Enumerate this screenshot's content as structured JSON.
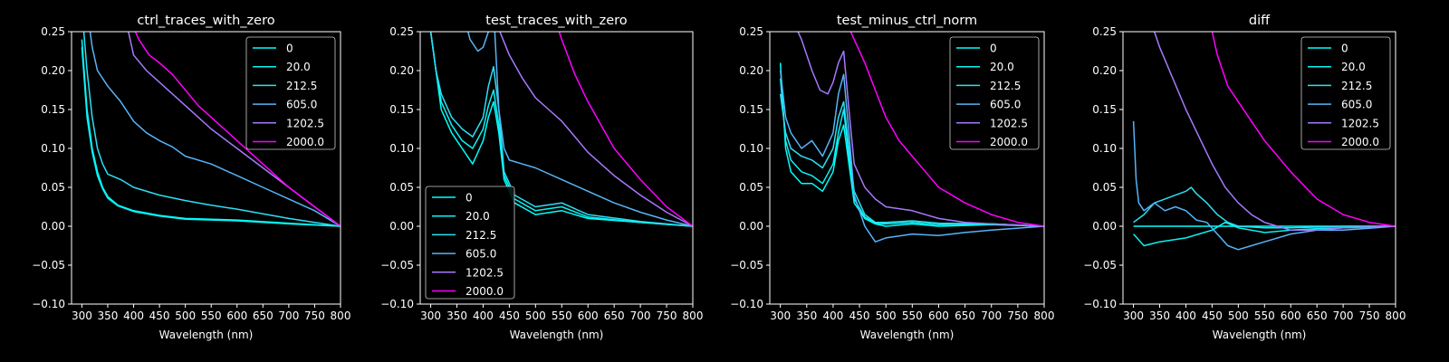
{
  "figure": {
    "background": "#000000",
    "foreground": "#ffffff"
  },
  "colors": {
    "0": "#00ffff",
    "20.0": "#0cf2f3",
    "212.5": "#2be0f5",
    "605.0": "#56b4f9",
    "1202.5": "#a579fd",
    "2000.0": "#ff00ff"
  },
  "chart_data": [
    {
      "type": "line",
      "title": "ctrl_traces_with_zero",
      "xlabel": "Wavelength (nm)",
      "ylabel": "",
      "xlim": [
        280,
        800
      ],
      "ylim": [
        -0.1,
        0.25
      ],
      "xticks": [
        300,
        350,
        400,
        450,
        500,
        550,
        600,
        650,
        700,
        750,
        800
      ],
      "yticks": [
        -0.1,
        -0.05,
        0.0,
        0.05,
        0.1,
        0.15,
        0.2,
        0.25
      ],
      "ytick_labels": [
        "−0.10",
        "−0.05",
        "0.00",
        "0.05",
        "0.10",
        "0.15",
        "0.20",
        "0.25"
      ],
      "grid": false,
      "legend": {
        "position": "upper-right",
        "entries": [
          "0",
          "20.0",
          "212.5",
          "605.0",
          "1202.5",
          "2000.0"
        ]
      },
      "series": [
        {
          "name": "0",
          "x": [
            300,
            310,
            320,
            330,
            340,
            350,
            370,
            400,
            450,
            500,
            600,
            700,
            800
          ],
          "y": [
            0.24,
            0.15,
            0.1,
            0.07,
            0.05,
            0.038,
            0.027,
            0.02,
            0.014,
            0.01,
            0.008,
            0.004,
            0.0
          ]
        },
        {
          "name": "20.0",
          "x": [
            300,
            310,
            320,
            330,
            340,
            350,
            370,
            400,
            450,
            500,
            600,
            700,
            800
          ],
          "y": [
            0.23,
            0.14,
            0.095,
            0.065,
            0.048,
            0.036,
            0.026,
            0.019,
            0.013,
            0.009,
            0.007,
            0.003,
            0.0
          ]
        },
        {
          "name": "212.5",
          "x": [
            300,
            310,
            320,
            330,
            340,
            350,
            375,
            400,
            450,
            500,
            550,
            600,
            650,
            700,
            750,
            800
          ],
          "y": [
            0.28,
            0.2,
            0.14,
            0.1,
            0.08,
            0.067,
            0.06,
            0.05,
            0.04,
            0.033,
            0.027,
            0.022,
            0.016,
            0.01,
            0.005,
            0.0
          ]
        },
        {
          "name": "605.0",
          "x": [
            310,
            320,
            330,
            350,
            375,
            400,
            425,
            450,
            475,
            500,
            550,
            600,
            650,
            700,
            750,
            800
          ],
          "y": [
            0.28,
            0.23,
            0.2,
            0.18,
            0.16,
            0.135,
            0.12,
            0.11,
            0.102,
            0.09,
            0.08,
            0.065,
            0.05,
            0.035,
            0.02,
            0.0
          ]
        },
        {
          "name": "1202.5",
          "x": [
            380,
            400,
            425,
            450,
            475,
            500,
            550,
            600,
            650,
            700,
            750,
            800
          ],
          "y": [
            0.28,
            0.22,
            0.2,
            0.185,
            0.17,
            0.155,
            0.125,
            0.1,
            0.075,
            0.05,
            0.025,
            0.0
          ]
        },
        {
          "name": "2000.0",
          "x": [
            390,
            410,
            430,
            450,
            475,
            500,
            525,
            550,
            600,
            650,
            700,
            750,
            800
          ],
          "y": [
            0.27,
            0.24,
            0.22,
            0.21,
            0.195,
            0.175,
            0.155,
            0.14,
            0.11,
            0.08,
            0.05,
            0.025,
            0.0
          ]
        }
      ]
    },
    {
      "type": "line",
      "title": "test_traces_with_zero",
      "xlabel": "Wavelength (nm)",
      "ylabel": "",
      "xlim": [
        280,
        800
      ],
      "ylim": [
        -0.1,
        0.25
      ],
      "xticks": [
        300,
        350,
        400,
        450,
        500,
        550,
        600,
        650,
        700,
        750,
        800
      ],
      "yticks": [
        -0.1,
        -0.05,
        0.0,
        0.05,
        0.1,
        0.15,
        0.2,
        0.25
      ],
      "ytick_labels": [
        "−0.10",
        "−0.05",
        "0.00",
        "0.05",
        "0.10",
        "0.15",
        "0.20",
        "0.25"
      ],
      "grid": false,
      "legend": {
        "position": "lower-left",
        "entries": [
          "0",
          "20.0",
          "212.5",
          "605.0",
          "1202.5",
          "2000.0"
        ]
      },
      "series": [
        {
          "name": "0",
          "x": [
            300,
            310,
            320,
            340,
            360,
            380,
            400,
            410,
            420,
            430,
            440,
            460,
            500,
            550,
            600,
            700,
            800
          ],
          "y": [
            0.25,
            0.2,
            0.15,
            0.12,
            0.1,
            0.08,
            0.11,
            0.14,
            0.16,
            0.12,
            0.06,
            0.03,
            0.015,
            0.02,
            0.01,
            0.005,
            0.0
          ]
        },
        {
          "name": "20.0",
          "x": [
            300,
            310,
            320,
            340,
            360,
            380,
            400,
            410,
            420,
            430,
            440,
            460,
            500,
            550,
            600,
            700,
            800
          ],
          "y": [
            0.25,
            0.2,
            0.16,
            0.13,
            0.11,
            0.1,
            0.125,
            0.155,
            0.175,
            0.13,
            0.065,
            0.035,
            0.02,
            0.025,
            0.012,
            0.005,
            0.0
          ]
        },
        {
          "name": "212.5",
          "x": [
            300,
            310,
            320,
            340,
            360,
            380,
            400,
            410,
            420,
            430,
            440,
            460,
            500,
            550,
            600,
            700,
            800
          ],
          "y": [
            0.25,
            0.2,
            0.17,
            0.14,
            0.125,
            0.115,
            0.14,
            0.18,
            0.205,
            0.15,
            0.07,
            0.04,
            0.025,
            0.03,
            0.015,
            0.006,
            0.0
          ]
        },
        {
          "name": "605.0",
          "x": [
            360,
            375,
            390,
            400,
            410,
            420,
            430,
            440,
            450,
            475,
            500,
            550,
            600,
            650,
            700,
            750,
            800
          ],
          "y": [
            0.28,
            0.24,
            0.225,
            0.23,
            0.25,
            0.28,
            0.15,
            0.1,
            0.085,
            0.08,
            0.075,
            0.06,
            0.045,
            0.03,
            0.018,
            0.008,
            0.0
          ]
        },
        {
          "name": "1202.5",
          "x": [
            420,
            450,
            475,
            500,
            525,
            550,
            575,
            600,
            650,
            700,
            750,
            800
          ],
          "y": [
            0.27,
            0.22,
            0.19,
            0.165,
            0.15,
            0.135,
            0.115,
            0.095,
            0.065,
            0.04,
            0.018,
            0.0
          ]
        },
        {
          "name": "2000.0",
          "x": [
            530,
            550,
            575,
            600,
            625,
            650,
            700,
            750,
            800
          ],
          "y": [
            0.28,
            0.24,
            0.195,
            0.16,
            0.13,
            0.1,
            0.06,
            0.025,
            0.0
          ]
        }
      ]
    },
    {
      "type": "line",
      "title": "test_minus_ctrl_norm",
      "xlabel": "Wavelength (nm)",
      "ylabel": "",
      "xlim": [
        280,
        800
      ],
      "ylim": [
        -0.1,
        0.25
      ],
      "xticks": [
        300,
        350,
        400,
        450,
        500,
        550,
        600,
        650,
        700,
        750,
        800
      ],
      "yticks": [
        -0.1,
        -0.05,
        0.0,
        0.05,
        0.1,
        0.15,
        0.2,
        0.25
      ],
      "ytick_labels": [
        "−0.10",
        "−0.05",
        "0.00",
        "0.05",
        "0.10",
        "0.15",
        "0.20",
        "0.25"
      ],
      "grid": false,
      "legend": {
        "position": "upper-right",
        "entries": [
          "0",
          "20.0",
          "212.5",
          "605.0",
          "1202.5",
          "2000.0"
        ]
      },
      "series": [
        {
          "name": "0",
          "x": [
            300,
            310,
            320,
            340,
            360,
            380,
            400,
            410,
            420,
            430,
            440,
            460,
            480,
            500,
            550,
            600,
            700,
            800
          ],
          "y": [
            0.21,
            0.1,
            0.07,
            0.055,
            0.055,
            0.045,
            0.07,
            0.11,
            0.13,
            0.08,
            0.03,
            0.01,
            0.003,
            0.0,
            0.003,
            0.0,
            0.002,
            0.0
          ]
        },
        {
          "name": "20.0",
          "x": [
            300,
            310,
            320,
            340,
            360,
            380,
            400,
            410,
            420,
            430,
            440,
            460,
            480,
            500,
            550,
            600,
            700,
            800
          ],
          "y": [
            0.19,
            0.11,
            0.085,
            0.07,
            0.065,
            0.055,
            0.08,
            0.12,
            0.15,
            0.09,
            0.035,
            0.012,
            0.004,
            0.003,
            0.005,
            0.002,
            0.003,
            0.0
          ]
        },
        {
          "name": "212.5",
          "x": [
            300,
            310,
            320,
            340,
            360,
            380,
            400,
            410,
            420,
            430,
            440,
            460,
            480,
            500,
            550,
            600,
            700,
            800
          ],
          "y": [
            0.17,
            0.12,
            0.1,
            0.09,
            0.085,
            0.075,
            0.1,
            0.14,
            0.16,
            0.1,
            0.045,
            0.015,
            0.005,
            0.005,
            0.007,
            0.004,
            0.003,
            0.0
          ]
        },
        {
          "name": "605.0",
          "x": [
            300,
            310,
            320,
            340,
            360,
            380,
            400,
            410,
            420,
            430,
            440,
            460,
            480,
            500,
            550,
            600,
            650,
            700,
            800
          ],
          "y": [
            0.2,
            0.14,
            0.12,
            0.1,
            0.11,
            0.09,
            0.12,
            0.17,
            0.195,
            0.12,
            0.04,
            0.0,
            -0.02,
            -0.015,
            -0.01,
            -0.012,
            -0.008,
            -0.005,
            0.0
          ]
        },
        {
          "name": "1202.5",
          "x": [
            320,
            340,
            360,
            375,
            390,
            400,
            410,
            420,
            430,
            440,
            460,
            480,
            500,
            550,
            600,
            650,
            700,
            800
          ],
          "y": [
            0.27,
            0.24,
            0.2,
            0.175,
            0.17,
            0.185,
            0.21,
            0.225,
            0.15,
            0.08,
            0.05,
            0.035,
            0.025,
            0.02,
            0.01,
            0.005,
            0.003,
            0.0
          ]
        },
        {
          "name": "2000.0",
          "x": [
            420,
            440,
            460,
            480,
            500,
            525,
            550,
            575,
            600,
            650,
            700,
            750,
            800
          ],
          "y": [
            0.27,
            0.24,
            0.21,
            0.175,
            0.14,
            0.11,
            0.09,
            0.07,
            0.05,
            0.03,
            0.015,
            0.005,
            0.0
          ]
        }
      ]
    },
    {
      "type": "line",
      "title": "diff",
      "xlabel": "Wavelength (nm)",
      "ylabel": "",
      "xlim": [
        280,
        800
      ],
      "ylim": [
        -0.1,
        0.25
      ],
      "xticks": [
        300,
        350,
        400,
        450,
        500,
        550,
        600,
        650,
        700,
        750,
        800
      ],
      "yticks": [
        -0.1,
        -0.05,
        0.0,
        0.05,
        0.1,
        0.15,
        0.2,
        0.25
      ],
      "ytick_labels": [
        "−0.10",
        "−0.05",
        "0.00",
        "0.05",
        "0.10",
        "0.15",
        "0.20",
        "0.25"
      ],
      "grid": false,
      "legend": {
        "position": "upper-right",
        "entries": [
          "0",
          "20.0",
          "212.5",
          "605.0",
          "1202.5",
          "2000.0"
        ]
      },
      "series": [
        {
          "name": "0",
          "x": [
            300,
            800
          ],
          "y": [
            0.0,
            0.0
          ]
        },
        {
          "name": "20.0",
          "x": [
            300,
            320,
            350,
            400,
            450,
            475,
            500,
            550,
            600,
            650,
            700,
            750,
            800
          ],
          "y": [
            -0.01,
            -0.025,
            -0.02,
            -0.015,
            -0.005,
            0.005,
            -0.002,
            -0.008,
            -0.005,
            -0.003,
            -0.002,
            -0.001,
            0.0
          ]
        },
        {
          "name": "212.5",
          "x": [
            300,
            320,
            340,
            360,
            380,
            400,
            410,
            420,
            440,
            460,
            480,
            500,
            550,
            600,
            650,
            700,
            800
          ],
          "y": [
            0.005,
            0.015,
            0.03,
            0.035,
            0.04,
            0.045,
            0.05,
            0.042,
            0.03,
            0.015,
            0.005,
            0.0,
            -0.002,
            -0.002,
            -0.001,
            0.0,
            0.0
          ]
        },
        {
          "name": "605.0",
          "x": [
            300,
            305,
            310,
            320,
            340,
            360,
            380,
            400,
            420,
            440,
            460,
            480,
            500,
            525,
            550,
            600,
            650,
            700,
            800
          ],
          "y": [
            0.135,
            0.06,
            0.03,
            0.02,
            0.03,
            0.02,
            0.025,
            0.02,
            0.008,
            0.005,
            -0.01,
            -0.025,
            -0.03,
            -0.025,
            -0.02,
            -0.01,
            -0.005,
            -0.005,
            0.0
          ]
        },
        {
          "name": "1202.5",
          "x": [
            330,
            350,
            375,
            400,
            425,
            450,
            475,
            500,
            525,
            550,
            600,
            650,
            700,
            800
          ],
          "y": [
            0.27,
            0.23,
            0.19,
            0.15,
            0.115,
            0.08,
            0.05,
            0.03,
            0.015,
            0.005,
            -0.005,
            -0.005,
            -0.002,
            0.0
          ]
        },
        {
          "name": "2000.0",
          "x": [
            440,
            450,
            460,
            470,
            480,
            490,
            500,
            525,
            550,
            575,
            600,
            650,
            700,
            750,
            800
          ],
          "y": [
            0.28,
            0.25,
            0.22,
            0.2,
            0.18,
            0.17,
            0.16,
            0.135,
            0.11,
            0.09,
            0.07,
            0.035,
            0.015,
            0.005,
            0.0
          ]
        }
      ]
    }
  ]
}
